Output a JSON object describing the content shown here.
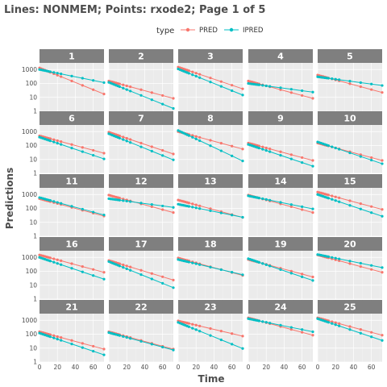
{
  "chart_data": {
    "type": "line",
    "title": "Lines: NONMEM; Points: rxode2; Page 1 of 5",
    "xlabel": "Time",
    "ylabel": "Predictions",
    "yscale": "log10",
    "ylim": [
      1,
      3000
    ],
    "xlim": [
      0,
      72
    ],
    "x_ticks": [
      0,
      20,
      40,
      60
    ],
    "y_ticks": [
      1,
      10,
      100,
      1000
    ],
    "y_tick_labels": [
      "1",
      "10",
      "100",
      "1000"
    ],
    "legend": {
      "title": "type",
      "position": "top",
      "entries": [
        {
          "label": "PRED",
          "color": "#F8766D"
        },
        {
          "label": "IPRED",
          "color": "#00BFC4"
        }
      ]
    },
    "grid": true,
    "times": [
      0,
      2,
      4,
      6,
      8,
      10,
      12,
      16,
      20,
      24,
      36,
      48,
      60,
      72
    ],
    "panels": [
      {
        "id": "1",
        "pred": {
          "c0": 1300,
          "k": 0.06
        },
        "ipred": {
          "c0": 1000,
          "k": 0.03
        }
      },
      {
        "id": "2",
        "pred": {
          "c0": 150,
          "k": 0.04
        },
        "ipred": {
          "c0": 120,
          "k": 0.06
        }
      },
      {
        "id": "3",
        "pred": {
          "c0": 1500,
          "k": 0.05
        },
        "ipred": {
          "c0": 1100,
          "k": 0.06
        }
      },
      {
        "id": "4",
        "pred": {
          "c0": 150,
          "k": 0.04
        },
        "ipred": {
          "c0": 100,
          "k": 0.02
        }
      },
      {
        "id": "5",
        "pred": {
          "c0": 400,
          "k": 0.04
        },
        "ipred": {
          "c0": 300,
          "k": 0.02
        }
      },
      {
        "id": "6",
        "pred": {
          "c0": 500,
          "k": 0.04
        },
        "ipred": {
          "c0": 400,
          "k": 0.05
        }
      },
      {
        "id": "7",
        "pred": {
          "c0": 900,
          "k": 0.05
        },
        "ipred": {
          "c0": 700,
          "k": 0.06
        }
      },
      {
        "id": "8",
        "pred": {
          "c0": 1000,
          "k": 0.04
        },
        "ipred": {
          "c0": 1200,
          "k": 0.07
        }
      },
      {
        "id": "9",
        "pred": {
          "c0": 150,
          "k": 0.04
        },
        "ipred": {
          "c0": 120,
          "k": 0.05
        }
      },
      {
        "id": "10",
        "pred": {
          "c0": 150,
          "k": 0.04
        },
        "ipred": {
          "c0": 180,
          "k": 0.05
        }
      },
      {
        "id": "11",
        "pred": {
          "c0": 500,
          "k": 0.04
        },
        "ipred": {
          "c0": 600,
          "k": 0.04
        }
      },
      {
        "id": "12",
        "pred": {
          "c0": 900,
          "k": 0.04
        },
        "ipred": {
          "c0": 500,
          "k": 0.02
        }
      },
      {
        "id": "13",
        "pred": {
          "c0": 400,
          "k": 0.04
        },
        "ipred": {
          "c0": 200,
          "k": 0.03
        }
      },
      {
        "id": "14",
        "pred": {
          "c0": 900,
          "k": 0.04
        },
        "ipred": {
          "c0": 800,
          "k": 0.03
        }
      },
      {
        "id": "15",
        "pred": {
          "c0": 1500,
          "k": 0.04
        },
        "ipred": {
          "c0": 1000,
          "k": 0.05
        }
      },
      {
        "id": "16",
        "pred": {
          "c0": 1500,
          "k": 0.04
        },
        "ipred": {
          "c0": 1000,
          "k": 0.05
        }
      },
      {
        "id": "17",
        "pred": {
          "c0": 600,
          "k": 0.045
        },
        "ipred": {
          "c0": 500,
          "k": 0.06
        }
      },
      {
        "id": "18",
        "pred": {
          "c0": 900,
          "k": 0.04
        },
        "ipred": {
          "c0": 700,
          "k": 0.035
        }
      },
      {
        "id": "19",
        "pred": {
          "c0": 700,
          "k": 0.04
        },
        "ipred": {
          "c0": 800,
          "k": 0.05
        }
      },
      {
        "id": "20",
        "pred": {
          "c0": 1500,
          "k": 0.04
        },
        "ipred": {
          "c0": 1600,
          "k": 0.03
        }
      },
      {
        "id": "21",
        "pred": {
          "c0": 150,
          "k": 0.04
        },
        "ipred": {
          "c0": 120,
          "k": 0.05
        }
      },
      {
        "id": "22",
        "pred": {
          "c0": 150,
          "k": 0.04
        },
        "ipred": {
          "c0": 130,
          "k": 0.04
        }
      },
      {
        "id": "23",
        "pred": {
          "c0": 900,
          "k": 0.035
        },
        "ipred": {
          "c0": 700,
          "k": 0.06
        }
      },
      {
        "id": "24",
        "pred": {
          "c0": 1500,
          "k": 0.04
        },
        "ipred": {
          "c0": 1300,
          "k": 0.03
        }
      },
      {
        "id": "25",
        "pred": {
          "c0": 1500,
          "k": 0.04
        },
        "ipred": {
          "c0": 1300,
          "k": 0.05
        }
      }
    ]
  }
}
